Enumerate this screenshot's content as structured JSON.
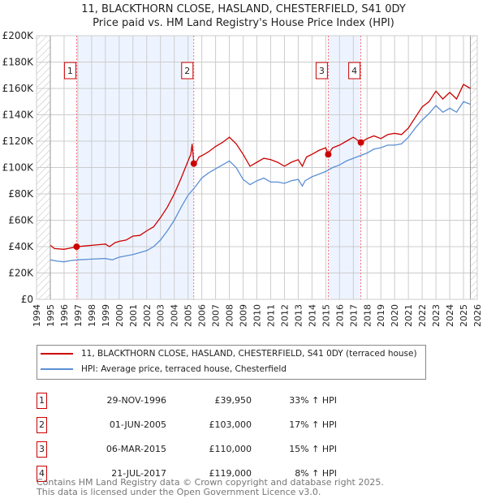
{
  "chart_data": {
    "type": "line",
    "title": "11, BLACKTHORN CLOSE, HASLAND, CHESTERFIELD, S41 0DY",
    "subtitle": "Price paid vs. HM Land Registry's House Price Index (HPI)",
    "xlim": [
      1994,
      2026
    ],
    "ylim": [
      0,
      200000
    ],
    "y_ticks": [
      {
        "v": 0,
        "label": "£0"
      },
      {
        "v": 20000,
        "label": "£20K"
      },
      {
        "v": 40000,
        "label": "£40K"
      },
      {
        "v": 60000,
        "label": "£60K"
      },
      {
        "v": 80000,
        "label": "£80K"
      },
      {
        "v": 100000,
        "label": "£100K"
      },
      {
        "v": 120000,
        "label": "£120K"
      },
      {
        "v": 140000,
        "label": "£140K"
      },
      {
        "v": 160000,
        "label": "£160K"
      },
      {
        "v": 180000,
        "label": "£180K"
      },
      {
        "v": 200000,
        "label": "£200K"
      }
    ],
    "x_ticks": [
      "1994",
      "1995",
      "1996",
      "1997",
      "1998",
      "1999",
      "2000",
      "2001",
      "2002",
      "2003",
      "2004",
      "2005",
      "2006",
      "2007",
      "2008",
      "2009",
      "2010",
      "2011",
      "2012",
      "2013",
      "2014",
      "2015",
      "2016",
      "2017",
      "2018",
      "2019",
      "2020",
      "2021",
      "2022",
      "2023",
      "2024",
      "2025",
      "2026"
    ],
    "series": [
      {
        "name": "11, BLACKTHORN CLOSE, HASLAND, CHESTERFIELD, S41 0DY (terraced house)",
        "color": "#cc0000",
        "points": [
          [
            1995,
            41000
          ],
          [
            1995.3,
            38500
          ],
          [
            1996,
            38000
          ],
          [
            1996.5,
            39000
          ],
          [
            1996.91,
            39950
          ],
          [
            1997.5,
            40500
          ],
          [
            1998,
            41000
          ],
          [
            1999,
            42000
          ],
          [
            1999.3,
            40000
          ],
          [
            1999.7,
            43000
          ],
          [
            2000,
            44000
          ],
          [
            2000.5,
            45000
          ],
          [
            2001,
            48000
          ],
          [
            2001.5,
            48500
          ],
          [
            2002,
            52000
          ],
          [
            2002.5,
            55000
          ],
          [
            2003,
            62000
          ],
          [
            2003.5,
            70000
          ],
          [
            2004,
            80000
          ],
          [
            2004.5,
            92000
          ],
          [
            2005,
            105000
          ],
          [
            2005.2,
            110000
          ],
          [
            2005.3,
            118000
          ],
          [
            2005.42,
            103000
          ],
          [
            2005.6,
            104000
          ],
          [
            2005.8,
            108000
          ],
          [
            2006,
            109000
          ],
          [
            2006.5,
            112000
          ],
          [
            2007,
            116000
          ],
          [
            2007.5,
            119000
          ],
          [
            2008,
            123000
          ],
          [
            2008.5,
            118000
          ],
          [
            2009,
            110000
          ],
          [
            2009.5,
            101000
          ],
          [
            2010,
            104000
          ],
          [
            2010.5,
            107000
          ],
          [
            2011,
            106000
          ],
          [
            2011.5,
            104000
          ],
          [
            2012,
            101000
          ],
          [
            2012.5,
            104000
          ],
          [
            2013,
            106000
          ],
          [
            2013.3,
            101000
          ],
          [
            2013.6,
            108000
          ],
          [
            2014,
            110000
          ],
          [
            2014.5,
            113000
          ],
          [
            2015,
            115000
          ],
          [
            2015.18,
            110000
          ],
          [
            2015.5,
            115000
          ],
          [
            2016,
            117000
          ],
          [
            2016.5,
            120000
          ],
          [
            2017,
            123000
          ],
          [
            2017.55,
            119000
          ],
          [
            2018,
            122000
          ],
          [
            2018.5,
            124000
          ],
          [
            2019,
            122000
          ],
          [
            2019.5,
            125000
          ],
          [
            2020,
            126000
          ],
          [
            2020.5,
            125000
          ],
          [
            2021,
            130000
          ],
          [
            2021.5,
            138000
          ],
          [
            2022,
            146000
          ],
          [
            2022.5,
            150000
          ],
          [
            2023,
            158000
          ],
          [
            2023.5,
            152000
          ],
          [
            2024,
            157000
          ],
          [
            2024.5,
            152000
          ],
          [
            2025,
            163000
          ],
          [
            2025.5,
            160000
          ]
        ]
      },
      {
        "name": "HPI: Average price, terraced house, Chesterfield",
        "color": "#5b8fd4",
        "points": [
          [
            1995,
            30000
          ],
          [
            1995.5,
            29000
          ],
          [
            1996,
            28500
          ],
          [
            1996.5,
            29500
          ],
          [
            1997,
            30000
          ],
          [
            1998,
            30500
          ],
          [
            1999,
            31000
          ],
          [
            1999.5,
            30000
          ],
          [
            2000,
            32000
          ],
          [
            2001,
            34000
          ],
          [
            2002,
            37000
          ],
          [
            2002.5,
            40000
          ],
          [
            2003,
            45000
          ],
          [
            2003.5,
            52000
          ],
          [
            2004,
            60000
          ],
          [
            2004.5,
            70000
          ],
          [
            2005,
            79000
          ],
          [
            2005.5,
            85000
          ],
          [
            2006,
            92000
          ],
          [
            2006.5,
            96000
          ],
          [
            2007,
            99000
          ],
          [
            2007.5,
            102000
          ],
          [
            2008,
            105000
          ],
          [
            2008.5,
            100000
          ],
          [
            2009,
            91000
          ],
          [
            2009.5,
            87000
          ],
          [
            2010,
            90000
          ],
          [
            2010.5,
            92000
          ],
          [
            2011,
            89000
          ],
          [
            2011.5,
            89000
          ],
          [
            2012,
            88000
          ],
          [
            2012.5,
            90000
          ],
          [
            2013,
            91000
          ],
          [
            2013.3,
            86000
          ],
          [
            2013.5,
            90000
          ],
          [
            2014,
            93000
          ],
          [
            2014.5,
            95000
          ],
          [
            2015,
            97000
          ],
          [
            2015.5,
            100000
          ],
          [
            2016,
            102000
          ],
          [
            2016.5,
            105000
          ],
          [
            2017,
            107000
          ],
          [
            2017.5,
            109000
          ],
          [
            2018,
            111000
          ],
          [
            2018.5,
            114000
          ],
          [
            2019,
            115000
          ],
          [
            2019.5,
            117000
          ],
          [
            2020,
            117000
          ],
          [
            2020.5,
            118000
          ],
          [
            2021,
            123000
          ],
          [
            2021.5,
            130000
          ],
          [
            2022,
            136000
          ],
          [
            2022.5,
            141000
          ],
          [
            2023,
            147000
          ],
          [
            2023.5,
            142000
          ],
          [
            2024,
            145000
          ],
          [
            2024.5,
            142000
          ],
          [
            2025,
            150000
          ],
          [
            2025.5,
            148000
          ]
        ]
      }
    ],
    "transactions": [
      {
        "num": "1",
        "x": 1996.91,
        "date": "29-NOV-1996",
        "price": "£39,950",
        "value": 39950,
        "hpi": "33% ↑ HPI"
      },
      {
        "num": "2",
        "x": 2005.42,
        "date": "01-JUN-2005",
        "price": "£103,000",
        "value": 103000,
        "hpi": "17% ↑ HPI"
      },
      {
        "num": "3",
        "x": 2015.18,
        "date": "06-MAR-2015",
        "price": "£110,000",
        "value": 110000,
        "hpi": "15% ↑ HPI"
      },
      {
        "num": "4",
        "x": 2017.55,
        "date": "21-JUL-2017",
        "price": "£119,000",
        "value": 119000,
        "hpi": "8% ↑ HPI"
      }
    ],
    "shaded_ranges": [
      [
        1996.91,
        2005.42
      ],
      [
        2015.18,
        2017.55
      ]
    ],
    "hatched_ranges": [
      [
        1994,
        1995
      ],
      [
        2025.5,
        2026
      ]
    ]
  },
  "footer": [
    "Contains HM Land Registry data © Crown copyright and database right 2025.",
    "This data is licensed under the Open Government Licence v3.0."
  ]
}
